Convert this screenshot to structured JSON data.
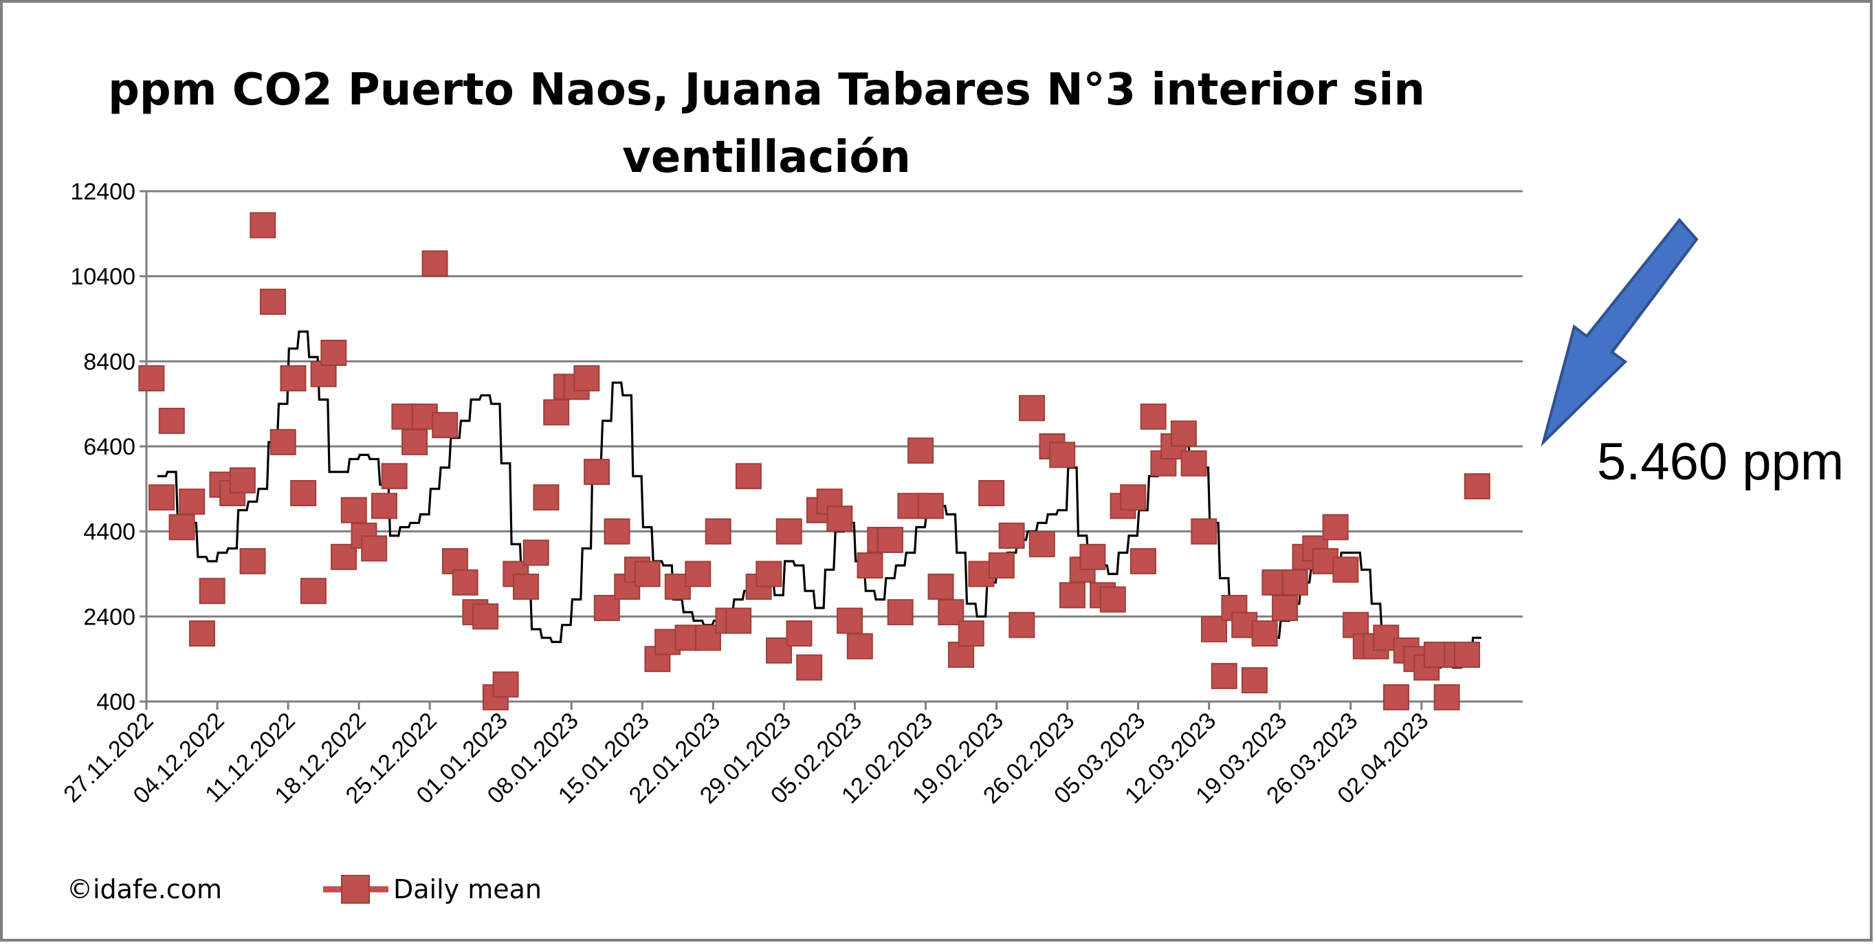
{
  "chart_data": {
    "type": "scatter",
    "title_line1": "ppm CO2 Puerto Naos, Juana Tabares N°3 interior sin",
    "title_line2": "ventillación",
    "ylim": [
      400,
      12400
    ],
    "yticks": [
      "400",
      "2400",
      "4400",
      "6400",
      "8400",
      "10400",
      "12400"
    ],
    "x_start": "27.11.2022",
    "x_days": 136,
    "x_ticks": [
      "27.11.2022",
      "04.12.2022",
      "11.12.2022",
      "18.12.2022",
      "25.12.2022",
      "01.01.2023",
      "08.01.2023",
      "15.01.2023",
      "22.01.2023",
      "29.01.2023",
      "05.02.2023",
      "12.02.2023",
      "19.02.2023",
      "26.02.2023",
      "05.03.2023",
      "12.03.2023",
      "19.03.2023",
      "26.03.2023",
      "02.04.2023"
    ],
    "grid": "horizontal",
    "legend_position": "bottom-left",
    "series": [
      {
        "name": "Daily mean",
        "color": "#c0504d",
        "marker": "square",
        "values": [
          8000,
          5200,
          7000,
          4500,
          5100,
          2000,
          3000,
          5500,
          5300,
          5600,
          3700,
          11600,
          9800,
          6500,
          8000,
          5300,
          3000,
          8100,
          8600,
          3800,
          4900,
          4300,
          4000,
          5000,
          5700,
          7100,
          6500,
          7100,
          10700,
          6900,
          3700,
          3200,
          2500,
          2400,
          500,
          800,
          3400,
          3100,
          3900,
          5200,
          7200,
          7800,
          7800,
          8000,
          5800,
          2600,
          4400,
          3100,
          3500,
          3400,
          1400,
          1800,
          3100,
          1900,
          3400,
          1900,
          4400,
          2300,
          2300,
          5700,
          3100,
          3400,
          1600,
          4400,
          2000,
          1200,
          4900,
          5100,
          4700,
          2300,
          1700,
          3600,
          4200,
          4200,
          2500,
          5000,
          6300,
          5000,
          3100,
          2500,
          1500,
          2000,
          3400,
          5300,
          3600,
          4300,
          2200,
          7300,
          4100,
          6400,
          6200,
          2900,
          3500,
          3800,
          2900,
          2800,
          5000,
          5200,
          3700,
          7100,
          6000,
          6400,
          6700,
          6000,
          4400,
          2100,
          1000,
          2600,
          2200,
          900,
          2000,
          3200,
          2600,
          3200,
          3800,
          4000,
          3700,
          4500,
          3500,
          2200,
          1700,
          1700,
          1900,
          500,
          1600,
          1400,
          1200,
          1500,
          500,
          1500,
          1500,
          5460
        ]
      }
    ],
    "line_series": {
      "color": "#000000",
      "values": [
        null,
        5700,
        5800,
        4700,
        4600,
        3800,
        3700,
        3900,
        4000,
        4900,
        5100,
        5400,
        6500,
        7400,
        8700,
        9100,
        8500,
        7500,
        5800,
        5800,
        6100,
        6200,
        6100,
        5500,
        4300,
        4500,
        4600,
        4800,
        5400,
        5900,
        6600,
        7000,
        7500,
        7600,
        7400,
        6000,
        4100,
        3200,
        2100,
        1900,
        1800,
        2200,
        2800,
        4000,
        6000,
        7000,
        7900,
        7600,
        5700,
        4500,
        3700,
        3600,
        2800,
        2500,
        2300,
        2200,
        2300,
        2500,
        2800,
        3000,
        3200,
        3300,
        2900,
        3700,
        3600,
        3000,
        2600,
        3500,
        4400,
        4600,
        3700,
        3000,
        2800,
        3300,
        3600,
        3900,
        4500,
        4800,
        5000,
        4800,
        3900,
        2700,
        2400,
        3200,
        3600,
        3900,
        4200,
        4400,
        4600,
        4800,
        4900,
        5900,
        4300,
        3700,
        3600,
        3400,
        3900,
        4300,
        4900,
        5700,
        5900,
        6300,
        6600,
        6200,
        5900,
        4600,
        3300,
        2500,
        2300,
        2000,
        1800,
        1900,
        2300,
        2700,
        3200,
        3500,
        3700,
        3600,
        3900,
        3900,
        3500,
        2700,
        2000,
        1700,
        1500,
        1400,
        1300,
        1200,
        1300,
        1200,
        1300,
        1900
      ]
    },
    "legend": {
      "copyright": "©idafe.com",
      "series_label": "Daily mean"
    },
    "annotation": {
      "text": "5.460 ppm",
      "arrow_color": "#4472c4",
      "arrow_stroke": "#2f528f"
    }
  }
}
